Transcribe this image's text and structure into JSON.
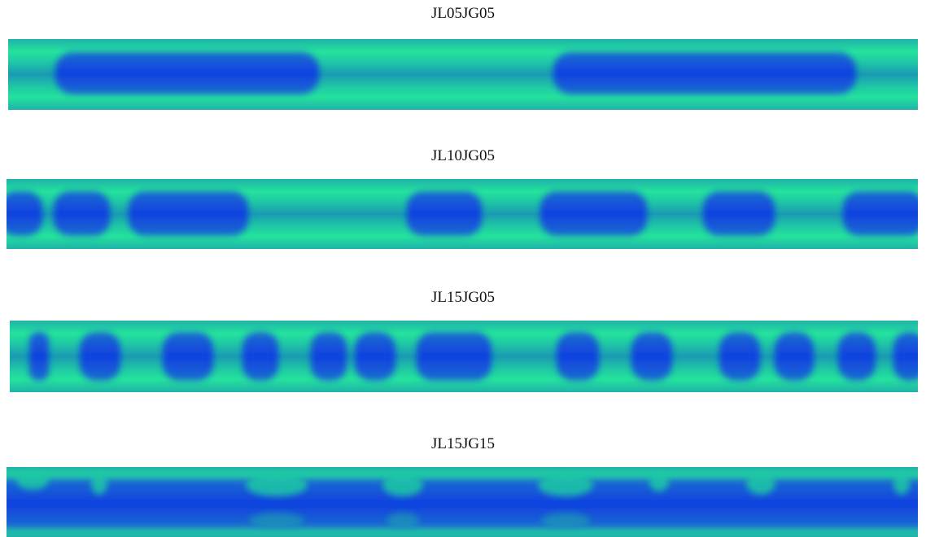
{
  "panels": [
    {
      "title": "JL05JG05"
    },
    {
      "title": "JL10JG05"
    },
    {
      "title": "JL15JG05"
    },
    {
      "title": "JL15JG15"
    }
  ]
}
